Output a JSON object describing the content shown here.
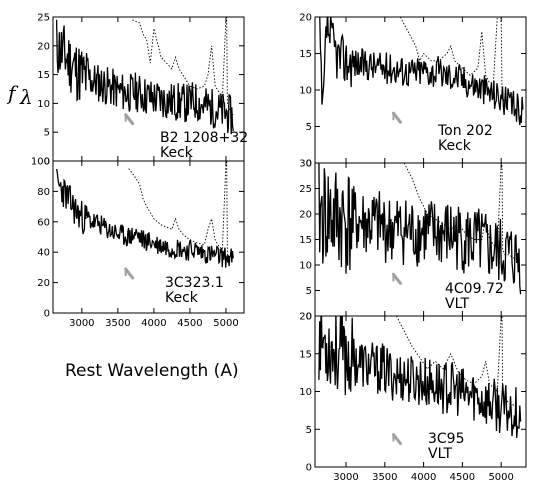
{
  "figure": {
    "xlabel": "Rest Wavelength (A)",
    "ylabel": "f",
    "ylabel_sub": "λ"
  },
  "chart_data": [
    {
      "type": "line",
      "id": "b2",
      "label_lines": [
        "B2 1208+32",
        "Keck"
      ],
      "xlim": [
        2600,
        5250
      ],
      "ylim": [
        0,
        25
      ],
      "yticks": [
        0,
        5,
        10,
        15,
        20,
        25
      ],
      "xticks": [],
      "series": [
        {
          "style": "solid",
          "x": [
            2650,
            2750,
            2850,
            2950,
            3050,
            3150,
            3250,
            3350,
            3450,
            3550,
            3650,
            3750,
            3850,
            3950,
            4050,
            4150,
            4250,
            4350,
            4450,
            4550,
            4650,
            4750,
            4850,
            4950,
            5050,
            5100
          ],
          "y": [
            20,
            18.5,
            17,
            15.5,
            14.5,
            14,
            13.5,
            13,
            12.5,
            12,
            11.8,
            12,
            11.5,
            11,
            10.8,
            10.5,
            10.3,
            10.2,
            10,
            10.5,
            9.8,
            9.5,
            9,
            8.5,
            8,
            7.5
          ],
          "noise": 3.5,
          "seed": 11
        },
        {
          "style": "dotted",
          "x": [
            3700,
            3800,
            3850,
            3900,
            3950,
            4000,
            4100,
            4250,
            4300,
            4350,
            4400,
            4500,
            4600,
            4700,
            4750,
            4800,
            4850,
            4900,
            4950,
            5000,
            5010,
            5020,
            5050,
            5100
          ],
          "y": [
            24.5,
            24,
            22,
            21,
            17,
            23,
            18,
            16,
            18,
            16,
            15,
            13,
            12.5,
            13,
            15,
            20,
            13,
            12,
            11,
            25,
            25,
            10,
            9,
            8
          ],
          "noise": 0,
          "seed": 2
        }
      ],
      "marker_x": 3650,
      "marker_y": 7
    },
    {
      "type": "line",
      "id": "3c323",
      "label_lines": [
        "3C323.1",
        "Keck"
      ],
      "xlim": [
        2600,
        5250
      ],
      "ylim": [
        0,
        100
      ],
      "yticks": [
        0,
        20,
        40,
        60,
        80,
        100
      ],
      "xticks": [
        3000,
        3500,
        4000,
        4500,
        5000
      ],
      "series": [
        {
          "style": "solid",
          "x": [
            2650,
            2750,
            2850,
            2950,
            3050,
            3150,
            3250,
            3350,
            3450,
            3550,
            3650,
            3750,
            3850,
            3950,
            4050,
            4150,
            4250,
            4350,
            4450,
            4550,
            4650,
            4750,
            4850,
            4950,
            5050,
            5100
          ],
          "y": [
            85,
            80,
            72,
            65,
            62,
            60,
            58,
            55,
            53,
            51,
            50,
            52,
            48,
            47,
            45,
            44,
            43,
            43,
            41,
            42,
            40,
            39,
            38,
            37,
            36,
            36
          ],
          "noise": 7,
          "seed": 23
        },
        {
          "style": "dotted",
          "x": [
            3650,
            3700,
            3800,
            3850,
            3900,
            3950,
            4000,
            4100,
            4250,
            4300,
            4350,
            4400,
            4500,
            4600,
            4700,
            4750,
            4800,
            4850,
            4900,
            4950,
            5000,
            5010,
            5020,
            5050,
            5100
          ],
          "y": [
            95,
            92,
            85,
            75,
            70,
            66,
            62,
            58,
            55,
            62,
            55,
            52,
            48,
            46,
            45,
            55,
            62,
            48,
            44,
            42,
            100,
            100,
            38,
            37,
            36
          ],
          "noise": 0,
          "seed": 3
        }
      ],
      "marker_x": 3650,
      "marker_y": 25
    },
    {
      "type": "line",
      "id": "ton202",
      "label_lines": [
        "Ton 202",
        "Keck"
      ],
      "xlim": [
        2600,
        5320
      ],
      "ylim": [
        0,
        20
      ],
      "yticks": [
        0,
        5,
        10,
        15,
        20
      ],
      "xticks": [],
      "series": [
        {
          "style": "solid",
          "x": [
            2650,
            2700,
            2750,
            2800,
            2900,
            3000,
            3100,
            3200,
            3300,
            3400,
            3500,
            3600,
            3700,
            3800,
            3900,
            4000,
            4100,
            4200,
            4300,
            4400,
            4500,
            4600,
            4700,
            4800,
            4900,
            5000,
            5100,
            5200,
            5280
          ],
          "y": [
            20,
            6,
            19,
            17,
            14.5,
            14,
            13.8,
            13.5,
            13.5,
            13.2,
            13,
            13,
            12.8,
            12.5,
            12.5,
            12.8,
            12.5,
            12.5,
            12,
            12,
            11.5,
            11,
            10.5,
            10,
            9.5,
            9,
            8,
            7.5,
            7
          ],
          "noise": 2.2,
          "seed": 37
        },
        {
          "style": "dotted",
          "x": [
            3700,
            3800,
            3900,
            3950,
            4000,
            4100,
            4200,
            4300,
            4350,
            4400,
            4500,
            4600,
            4700,
            4750,
            4800,
            4850,
            4900,
            4950,
            5000,
            5010,
            5020,
            5050,
            5100
          ],
          "y": [
            20,
            18,
            16,
            14,
            15,
            14,
            14,
            15,
            16,
            14,
            13,
            12,
            13,
            18,
            12,
            11,
            11,
            20,
            20,
            10,
            9,
            8,
            7
          ],
          "noise": 0,
          "seed": 4
        }
      ],
      "marker_x": 3650,
      "marker_y": 6
    },
    {
      "type": "line",
      "id": "4c0972",
      "label_lines": [
        "4C09.72",
        "VLT"
      ],
      "xlim": [
        2600,
        5320
      ],
      "ylim": [
        0,
        30
      ],
      "yticks": [
        0,
        5,
        10,
        15,
        20,
        25,
        30
      ],
      "xticks": [],
      "series": [
        {
          "style": "solid",
          "x": [
            2650,
            2750,
            2850,
            2950,
            3050,
            3150,
            3250,
            3350,
            3450,
            3550,
            3650,
            3750,
            3850,
            3950,
            4050,
            4150,
            4250,
            4350,
            4450,
            4550,
            4650,
            4750,
            4850,
            4950,
            5050,
            5150,
            5250
          ],
          "y": [
            20,
            20,
            19,
            19,
            18.5,
            18.5,
            18,
            18,
            17.5,
            17,
            17,
            17,
            16.5,
            16.5,
            16.5,
            16,
            16,
            16,
            15.5,
            15,
            14.5,
            14,
            13,
            12.5,
            12,
            11.5,
            11
          ],
          "noise": 7,
          "seed": 41
        },
        {
          "style": "dotted",
          "x": [
            3750,
            3850,
            3950,
            4050,
            4150,
            4250,
            4350,
            4450,
            4550,
            4650,
            4750,
            4800,
            4850,
            4900,
            4950,
            5000,
            5010,
            5020,
            5050,
            5100,
            5200
          ],
          "y": [
            30,
            27,
            23,
            20,
            19,
            18,
            17,
            18,
            16,
            15,
            15,
            19,
            15,
            14,
            13,
            30,
            30,
            13,
            12,
            12,
            11
          ],
          "noise": 0,
          "seed": 5
        }
      ],
      "marker_x": 3650,
      "marker_y": 7
    },
    {
      "type": "line",
      "id": "3c95",
      "label_lines": [
        "3C95",
        "VLT"
      ],
      "xlim": [
        2600,
        5320
      ],
      "ylim": [
        0,
        20
      ],
      "yticks": [
        0,
        5,
        10,
        15,
        20
      ],
      "xticks": [
        3000,
        3500,
        4000,
        4500,
        5000
      ],
      "series": [
        {
          "style": "solid",
          "x": [
            2650,
            2750,
            2850,
            2950,
            3050,
            3150,
            3250,
            3350,
            3450,
            3550,
            3650,
            3750,
            3850,
            3950,
            4050,
            4150,
            4250,
            4350,
            4450,
            4550,
            4650,
            4750,
            4850,
            4950,
            5050,
            5150,
            5250
          ],
          "y": [
            17,
            16.5,
            15.5,
            15,
            14.5,
            14,
            13.5,
            13,
            13,
            12.5,
            12,
            12,
            11.5,
            11.5,
            11,
            11,
            10.5,
            10.5,
            10,
            9.5,
            9.5,
            9,
            8.5,
            8,
            7.5,
            7.5,
            7
          ],
          "noise": 3.5,
          "seed": 53
        },
        {
          "style": "dotted",
          "x": [
            3650,
            3750,
            3850,
            3950,
            4050,
            4150,
            4250,
            4350,
            4450,
            4550,
            4650,
            4750,
            4800,
            4850,
            4900,
            4950,
            5000,
            5010,
            5020,
            5050,
            5100,
            5200
          ],
          "y": [
            20,
            18,
            16,
            14.5,
            13,
            14,
            13,
            15,
            12.5,
            11.5,
            11,
            12,
            14,
            11,
            10.5,
            10,
            20,
            20,
            9.5,
            9,
            8.5,
            8
          ],
          "noise": 0,
          "seed": 6
        }
      ],
      "marker_x": 3650,
      "marker_y": 3.5
    }
  ]
}
